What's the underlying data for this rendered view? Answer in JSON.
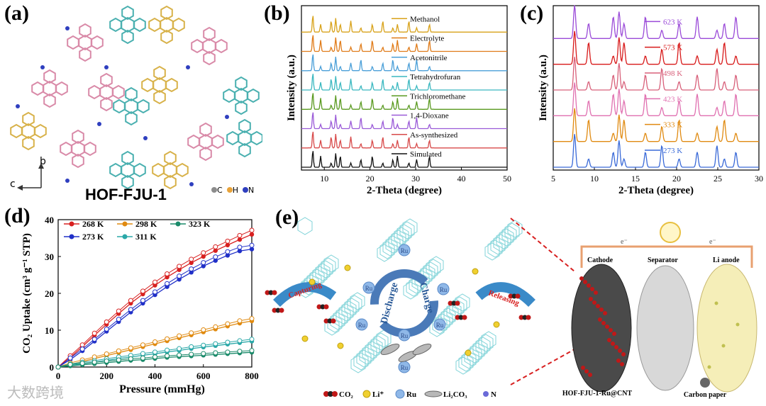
{
  "panels": {
    "a": {
      "label": "(a)",
      "title": "HOF-FJU-1",
      "axis_b": "b",
      "axis_c": "c",
      "legend": [
        {
          "label": "C",
          "color": "#8c8c8c"
        },
        {
          "label": "H",
          "color": "#e8a33a"
        },
        {
          "label": "N",
          "color": "#2f3fbf"
        }
      ],
      "colors": {
        "pink": "#d98aa8",
        "teal": "#4ab0b0",
        "gold": "#d8b24a"
      }
    },
    "b": {
      "label": "(b)"
    },
    "c": {
      "label": "(c)"
    },
    "d": {
      "label": "(d)"
    },
    "e": {
      "label": "(e)",
      "capturing": "Capturing",
      "releasing": "Releasing",
      "discharge": "Discharge",
      "charge": "Charge",
      "ru": "Ru",
      "cell": {
        "cathode": "Cathode",
        "separator": "Separator",
        "anode": "Li anode",
        "electron": "e⁻"
      },
      "caption_left": "HOF-FJU-1-Ru@CNT",
      "caption_right": "Carbon paper",
      "legend": [
        {
          "label": "CO₂",
          "kind": "co2"
        },
        {
          "label": "Li⁺",
          "kind": "li"
        },
        {
          "label": "Ru",
          "kind": "ru"
        },
        {
          "label": "Li₂CO₃",
          "kind": "li2co3"
        },
        {
          "label": "N",
          "kind": "n"
        }
      ]
    }
  },
  "watermark": "大数跨境",
  "chart_data": [
    {
      "id": "b",
      "type": "line",
      "xlabel": "2-Theta (degree)",
      "ylabel": "Intensity (a.u.)",
      "xlim": [
        5,
        50
      ],
      "xticks": [
        10,
        20,
        30,
        40,
        50
      ],
      "series": [
        {
          "name": "Methanol",
          "color": "#d8a21a"
        },
        {
          "name": "Electrolyte",
          "color": "#e07b18"
        },
        {
          "name": "Acetonitrile",
          "color": "#4a9fd8"
        },
        {
          "name": "Tetrahydrofuran",
          "color": "#3ab8c0"
        },
        {
          "name": "Trichloromethane",
          "color": "#5a9a20"
        },
        {
          "name": "1,4-Dioxane",
          "color": "#9a5ad8"
        },
        {
          "name": "As-synthesized",
          "color": "#d84a4a"
        },
        {
          "name": "Simulated",
          "color": "#111111"
        }
      ],
      "peaks": [
        7.5,
        9.2,
        11.5,
        12.5,
        13.5,
        15.8,
        18.0,
        20.5,
        22.8,
        25.0,
        26.0,
        28.5,
        30.2,
        33.0
      ]
    },
    {
      "id": "c",
      "type": "line",
      "xlabel": "2-Theta (degree)",
      "ylabel": "Intensity (a.u.)",
      "xlim": [
        5,
        30
      ],
      "xticks": [
        5,
        10,
        15,
        20,
        25,
        30
      ],
      "series": [
        {
          "name": "623 K",
          "color": "#9a4ad8"
        },
        {
          "name": "573 K",
          "color": "#d81a1a"
        },
        {
          "name": "498 K",
          "color": "#d8607a"
        },
        {
          "name": "423 K",
          "color": "#e070b0"
        },
        {
          "name": "333 K",
          "color": "#e08a10"
        },
        {
          "name": "273 K",
          "color": "#3a6ad8"
        }
      ],
      "peaks": [
        7.6,
        9.3,
        12.3,
        13.0,
        13.6,
        16.2,
        18.2,
        20.3,
        22.5,
        24.9,
        25.8,
        27.2
      ]
    },
    {
      "id": "d",
      "type": "line",
      "xlabel": "Pressure (mmHg)",
      "ylabel": "CO₂ Uptake (cm³ g⁻¹ STP)",
      "xlim": [
        0,
        800
      ],
      "ylim": [
        0,
        40
      ],
      "xticks": [
        0,
        200,
        400,
        600,
        800
      ],
      "yticks": [
        0,
        10,
        20,
        30,
        40
      ],
      "x": [
        0,
        50,
        100,
        150,
        200,
        250,
        300,
        350,
        400,
        450,
        500,
        550,
        600,
        650,
        700,
        750,
        800
      ],
      "series": [
        {
          "name": "268 K",
          "color": "#d82020",
          "values": [
            0,
            2.6,
            5.5,
            8.6,
            11.6,
            14.5,
            17.3,
            19.8,
            22.2,
            24.4,
            26.4,
            28.3,
            30.0,
            31.6,
            33.1,
            34.6,
            36.0
          ]
        },
        {
          "name": "273 K",
          "color": "#2030c8",
          "values": [
            0,
            2.0,
            4.4,
            7.0,
            9.7,
            12.3,
            14.9,
            17.3,
            19.6,
            21.8,
            23.8,
            25.7,
            27.4,
            28.9,
            30.3,
            31.5,
            32.0
          ]
        },
        {
          "name": "298 K",
          "color": "#e08a10",
          "values": [
            0,
            0.7,
            1.5,
            2.3,
            3.1,
            3.9,
            4.7,
            5.5,
            6.3,
            7.1,
            7.9,
            8.7,
            9.5,
            10.3,
            11.1,
            11.9,
            12.5
          ]
        },
        {
          "name": "311 K",
          "color": "#2aa8a8",
          "values": [
            0,
            0.4,
            0.9,
            1.3,
            1.8,
            2.3,
            2.7,
            3.2,
            3.6,
            4.1,
            4.5,
            5.0,
            5.4,
            5.8,
            6.2,
            6.6,
            7.0
          ]
        },
        {
          "name": "323 K",
          "color": "#1a8a6a",
          "values": [
            0,
            0.3,
            0.6,
            0.9,
            1.2,
            1.5,
            1.8,
            2.0,
            2.3,
            2.6,
            2.8,
            3.0,
            3.2,
            3.4,
            3.6,
            3.8,
            4.0
          ]
        }
      ]
    }
  ]
}
